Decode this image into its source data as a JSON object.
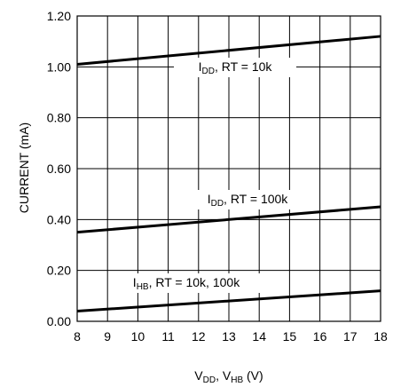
{
  "chart_data": {
    "type": "line",
    "xlabel": {
      "main": "V",
      "sub1": "DD",
      "mid": ", V",
      "sub2": "HB",
      "tail": " (V)"
    },
    "ylabel": "CURRENT (mA)",
    "xlim": [
      8,
      18
    ],
    "ylim": [
      0.0,
      1.2
    ],
    "x_ticks": [
      "8",
      "9",
      "10",
      "11",
      "12",
      "13",
      "14",
      "15",
      "16",
      "17",
      "18"
    ],
    "y_ticks": [
      "0.00",
      "0.20",
      "0.40",
      "0.60",
      "0.80",
      "1.00",
      "1.20"
    ],
    "grid": true,
    "series": [
      {
        "name": "IDD, RT = 10k",
        "label": {
          "main": "I",
          "sub": "DD",
          "rest": ", RT = 10k"
        },
        "x": [
          8,
          18
        ],
        "y": [
          1.01,
          1.12
        ]
      },
      {
        "name": "IDD, RT = 100k",
        "label": {
          "main": "I",
          "sub": "DD",
          "rest": ", RT = 100k"
        },
        "x": [
          8,
          18
        ],
        "y": [
          0.35,
          0.45
        ]
      },
      {
        "name": "IHB, RT = 10k, 100k",
        "label": {
          "main": "I",
          "sub": "HB",
          "rest": ", RT = 10k, 100k"
        },
        "x": [
          8,
          18
        ],
        "y": [
          0.04,
          0.12
        ]
      }
    ],
    "colors": {
      "line": "#000000",
      "grid": "#000000",
      "background": "#ffffff"
    }
  }
}
